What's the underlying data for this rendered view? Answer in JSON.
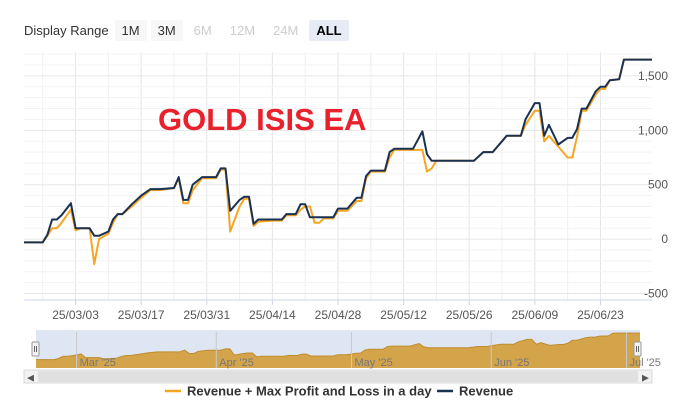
{
  "range_selector": {
    "label": "Display Range",
    "buttons": [
      {
        "label": "1M",
        "state": "normal"
      },
      {
        "label": "3M",
        "state": "normal"
      },
      {
        "label": "6M",
        "state": "disabled"
      },
      {
        "label": "12M",
        "state": "disabled"
      },
      {
        "label": "24M",
        "state": "disabled"
      },
      {
        "label": "ALL",
        "state": "active"
      }
    ]
  },
  "chart_data": {
    "type": "line",
    "title": "GOLD ISIS EA",
    "title_color": "#e8212c",
    "grid": true,
    "legend_position": "bottom",
    "x_tick_labels": [
      "25/03/03",
      "25/03/17",
      "25/03/31",
      "25/04/14",
      "25/04/28",
      "25/05/12",
      "25/05/26",
      "25/06/09",
      "25/06/23"
    ],
    "y_tick_labels": [
      "-500",
      "0",
      "500",
      "1,000",
      "1,500"
    ],
    "y_ticks": [
      -500,
      0,
      500,
      1000,
      1500
    ],
    "ylim": [
      -560,
      1720
    ],
    "xlim": [
      "2025-02-20",
      "2025-07-04"
    ],
    "series": [
      {
        "name": "Revenue + Max Profit and Loss in a day",
        "color": "#f5a623",
        "points": [
          [
            "2025-02-20",
            -30
          ],
          [
            "2025-02-24",
            -30
          ],
          [
            "2025-02-25",
            30
          ],
          [
            "2025-02-26",
            100
          ],
          [
            "2025-02-27",
            100
          ],
          [
            "2025-02-28",
            150
          ],
          [
            "2025-03-02",
            270
          ],
          [
            "2025-03-03",
            80
          ],
          [
            "2025-03-04",
            100
          ],
          [
            "2025-03-06",
            100
          ],
          [
            "2025-03-07",
            -230
          ],
          [
            "2025-03-08",
            0
          ],
          [
            "2025-03-10",
            50
          ],
          [
            "2025-03-11",
            150
          ],
          [
            "2025-03-12",
            230
          ],
          [
            "2025-03-13",
            230
          ],
          [
            "2025-03-15",
            300
          ],
          [
            "2025-03-17",
            380
          ],
          [
            "2025-03-19",
            450
          ],
          [
            "2025-03-21",
            450
          ],
          [
            "2025-03-24",
            470
          ],
          [
            "2025-03-25",
            560
          ],
          [
            "2025-03-26",
            330
          ],
          [
            "2025-03-27",
            330
          ],
          [
            "2025-03-28",
            450
          ],
          [
            "2025-03-30",
            560
          ],
          [
            "2025-04-02",
            560
          ],
          [
            "2025-04-03",
            640
          ],
          [
            "2025-04-04",
            640
          ],
          [
            "2025-04-05",
            70
          ],
          [
            "2025-04-07",
            300
          ],
          [
            "2025-04-08",
            370
          ],
          [
            "2025-04-09",
            370
          ],
          [
            "2025-04-10",
            120
          ],
          [
            "2025-04-11",
            160
          ],
          [
            "2025-04-14",
            170
          ],
          [
            "2025-04-16",
            170
          ],
          [
            "2025-04-17",
            220
          ],
          [
            "2025-04-19",
            220
          ],
          [
            "2025-04-20",
            270
          ],
          [
            "2025-04-21",
            300
          ],
          [
            "2025-04-22",
            300
          ],
          [
            "2025-04-23",
            150
          ],
          [
            "2025-04-24",
            150
          ],
          [
            "2025-04-25",
            190
          ],
          [
            "2025-04-27",
            190
          ],
          [
            "2025-04-28",
            260
          ],
          [
            "2025-04-30",
            260
          ],
          [
            "2025-05-02",
            350
          ],
          [
            "2025-05-03",
            350
          ],
          [
            "2025-05-04",
            560
          ],
          [
            "2025-05-05",
            620
          ],
          [
            "2025-05-08",
            620
          ],
          [
            "2025-05-09",
            750
          ],
          [
            "2025-05-10",
            820
          ],
          [
            "2025-05-11",
            820
          ],
          [
            "2025-05-14",
            820
          ],
          [
            "2025-05-16",
            820
          ],
          [
            "2025-05-17",
            620
          ],
          [
            "2025-05-18",
            650
          ],
          [
            "2025-05-19",
            720
          ],
          [
            "2025-05-21",
            720
          ],
          [
            "2025-05-27",
            720
          ],
          [
            "2025-05-29",
            800
          ],
          [
            "2025-05-31",
            800
          ],
          [
            "2025-06-03",
            950
          ],
          [
            "2025-06-06",
            950
          ],
          [
            "2025-06-07",
            1050
          ],
          [
            "2025-06-09",
            1180
          ],
          [
            "2025-06-10",
            1180
          ],
          [
            "2025-06-11",
            900
          ],
          [
            "2025-06-12",
            950
          ],
          [
            "2025-06-14",
            850
          ],
          [
            "2025-06-16",
            750
          ],
          [
            "2025-06-17",
            750
          ],
          [
            "2025-06-18",
            940
          ],
          [
            "2025-06-19",
            1180
          ],
          [
            "2025-06-20",
            1180
          ],
          [
            "2025-06-22",
            1330
          ],
          [
            "2025-06-23",
            1380
          ],
          [
            "2025-06-24",
            1380
          ],
          [
            "2025-06-25",
            1460
          ],
          [
            "2025-06-27",
            1470
          ],
          [
            "2025-06-28",
            1650
          ],
          [
            "2025-07-04",
            1650
          ]
        ]
      },
      {
        "name": "Revenue",
        "color": "#1a3152",
        "points": [
          [
            "2025-02-20",
            -30
          ],
          [
            "2025-02-24",
            -30
          ],
          [
            "2025-02-25",
            40
          ],
          [
            "2025-02-26",
            180
          ],
          [
            "2025-02-27",
            180
          ],
          [
            "2025-02-28",
            220
          ],
          [
            "2025-03-02",
            330
          ],
          [
            "2025-03-03",
            100
          ],
          [
            "2025-03-04",
            100
          ],
          [
            "2025-03-06",
            100
          ],
          [
            "2025-03-07",
            30
          ],
          [
            "2025-03-08",
            30
          ],
          [
            "2025-03-10",
            70
          ],
          [
            "2025-03-11",
            180
          ],
          [
            "2025-03-12",
            230
          ],
          [
            "2025-03-13",
            230
          ],
          [
            "2025-03-15",
            320
          ],
          [
            "2025-03-17",
            400
          ],
          [
            "2025-03-19",
            460
          ],
          [
            "2025-03-21",
            460
          ],
          [
            "2025-03-24",
            470
          ],
          [
            "2025-03-25",
            570
          ],
          [
            "2025-03-26",
            360
          ],
          [
            "2025-03-27",
            360
          ],
          [
            "2025-03-28",
            500
          ],
          [
            "2025-03-30",
            570
          ],
          [
            "2025-04-02",
            570
          ],
          [
            "2025-04-03",
            650
          ],
          [
            "2025-04-04",
            650
          ],
          [
            "2025-04-05",
            260
          ],
          [
            "2025-04-07",
            360
          ],
          [
            "2025-04-08",
            390
          ],
          [
            "2025-04-09",
            390
          ],
          [
            "2025-04-10",
            140
          ],
          [
            "2025-04-11",
            180
          ],
          [
            "2025-04-14",
            180
          ],
          [
            "2025-04-16",
            180
          ],
          [
            "2025-04-17",
            230
          ],
          [
            "2025-04-19",
            230
          ],
          [
            "2025-04-20",
            320
          ],
          [
            "2025-04-21",
            320
          ],
          [
            "2025-04-22",
            200
          ],
          [
            "2025-04-23",
            200
          ],
          [
            "2025-04-24",
            200
          ],
          [
            "2025-04-25",
            200
          ],
          [
            "2025-04-27",
            200
          ],
          [
            "2025-04-28",
            280
          ],
          [
            "2025-04-30",
            280
          ],
          [
            "2025-05-02",
            380
          ],
          [
            "2025-05-03",
            380
          ],
          [
            "2025-05-04",
            580
          ],
          [
            "2025-05-05",
            630
          ],
          [
            "2025-05-08",
            630
          ],
          [
            "2025-05-09",
            800
          ],
          [
            "2025-05-10",
            830
          ],
          [
            "2025-05-11",
            830
          ],
          [
            "2025-05-14",
            830
          ],
          [
            "2025-05-16",
            990
          ],
          [
            "2025-05-17",
            780
          ],
          [
            "2025-05-18",
            720
          ],
          [
            "2025-05-19",
            720
          ],
          [
            "2025-05-21",
            720
          ],
          [
            "2025-05-27",
            720
          ],
          [
            "2025-05-29",
            800
          ],
          [
            "2025-05-31",
            800
          ],
          [
            "2025-06-03",
            950
          ],
          [
            "2025-06-06",
            950
          ],
          [
            "2025-06-07",
            1100
          ],
          [
            "2025-06-09",
            1250
          ],
          [
            "2025-06-10",
            1250
          ],
          [
            "2025-06-11",
            950
          ],
          [
            "2025-06-12",
            1050
          ],
          [
            "2025-06-14",
            870
          ],
          [
            "2025-06-16",
            930
          ],
          [
            "2025-06-17",
            930
          ],
          [
            "2025-06-18",
            1010
          ],
          [
            "2025-06-19",
            1200
          ],
          [
            "2025-06-20",
            1200
          ],
          [
            "2025-06-22",
            1360
          ],
          [
            "2025-06-23",
            1400
          ],
          [
            "2025-06-24",
            1400
          ],
          [
            "2025-06-25",
            1460
          ],
          [
            "2025-06-27",
            1470
          ],
          [
            "2025-06-28",
            1650
          ],
          [
            "2025-07-04",
            1650
          ]
        ]
      }
    ]
  },
  "navigator": {
    "labels": [
      "Mar '25",
      "Apr '25",
      "May '25",
      "Jun '25",
      "Jul '25"
    ],
    "fill_color": "#d4a44a"
  }
}
